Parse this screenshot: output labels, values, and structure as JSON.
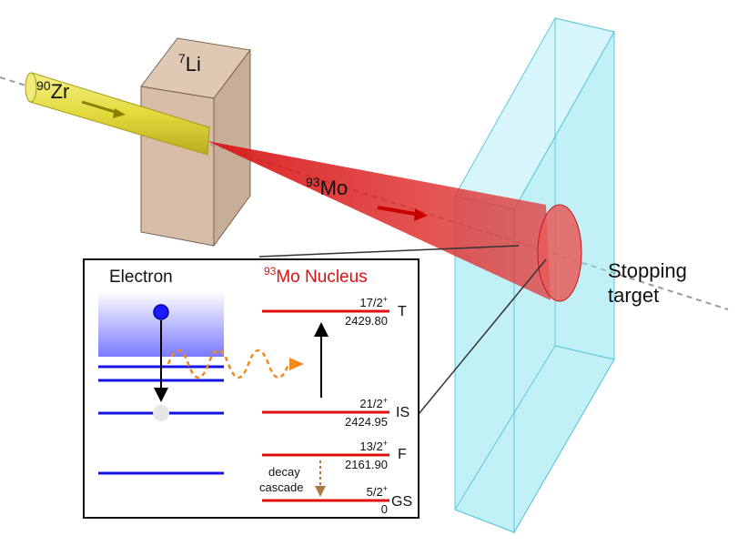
{
  "beam": {
    "zr_mass": "90",
    "zr_symbol": "Zr",
    "li_mass": "7",
    "li_symbol": "Li",
    "mo_mass": "93",
    "mo_symbol": "Mo"
  },
  "stopping_target": {
    "line1": "Stopping",
    "line2": "target"
  },
  "inset": {
    "electron_title": "Electron",
    "nucleus_title_mass": "93",
    "nucleus_title_rest": "Mo Nucleus",
    "decay_line1": "decay",
    "decay_line2": "cascade",
    "levels": [
      {
        "spin": "17/2",
        "parity": "+",
        "energy": "2429.80",
        "tag": "T"
      },
      {
        "spin": "21/2",
        "parity": "+",
        "energy": "2424.95",
        "tag": "IS"
      },
      {
        "spin": "13/2",
        "parity": "+",
        "energy": "2161.90",
        "tag": "F"
      },
      {
        "spin": "5/2",
        "parity": "+",
        "energy": "0",
        "tag": "GS"
      }
    ]
  },
  "colors": {
    "electron_blue": "#1414e6",
    "nucleus_red": "#e01010",
    "photon_orange": "#f08a1c",
    "decay_brown": "#a8783c",
    "target_cyan": "#8fe3f0",
    "li_target": "#c9a78a",
    "beam_yellow": "#e8e04a"
  }
}
